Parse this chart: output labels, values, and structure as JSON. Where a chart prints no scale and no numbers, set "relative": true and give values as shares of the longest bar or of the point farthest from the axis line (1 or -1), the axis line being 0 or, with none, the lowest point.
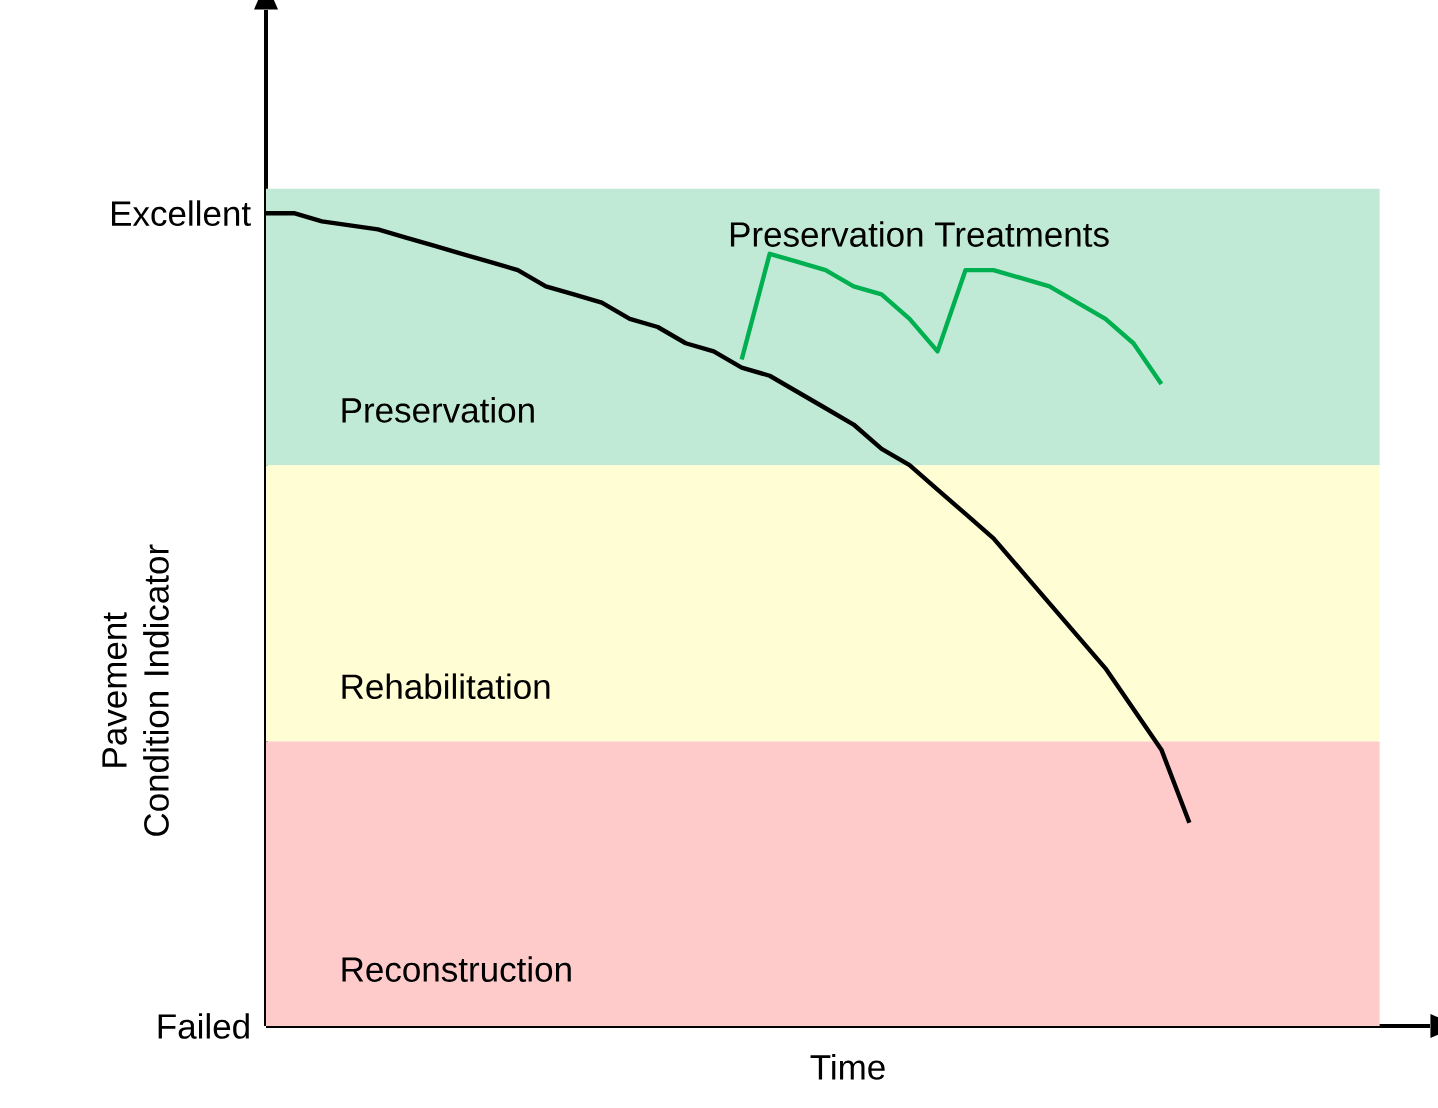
{
  "chart_data": {
    "type": "line",
    "xlabel": "Time",
    "ylabel": "Pavement Condition Indicator",
    "relative": true,
    "categories": [
      null,
      null,
      null,
      null,
      null,
      null,
      null,
      null,
      null,
      null,
      null,
      null,
      null,
      null,
      null,
      null,
      null,
      null,
      null,
      null,
      null,
      null,
      null,
      null,
      null,
      null,
      null,
      null,
      null,
      null,
      null,
      null,
      null,
      null,
      null,
      null,
      null,
      null,
      null,
      null
    ],
    "series": [
      {
        "color": "#000000",
        "values": [
          1.0,
          1.0,
          0.99,
          0.985,
          0.98,
          0.97,
          0.96,
          0.95,
          0.94,
          0.93,
          0.91,
          0.9,
          0.89,
          0.87,
          0.86,
          0.84,
          0.83,
          0.81,
          0.8,
          0.78,
          0.76,
          0.74,
          0.71,
          0.69,
          0.66,
          0.63,
          0.6,
          0.56,
          0.52,
          0.48,
          0.44,
          0.39,
          0.34,
          0.25,
          null,
          null,
          null,
          null,
          null,
          null
        ]
      },
      {
        "name": "Preservation Treatments",
        "color": "#00b050",
        "values": [
          null,
          null,
          null,
          null,
          null,
          null,
          null,
          null,
          null,
          null,
          null,
          null,
          null,
          null,
          null,
          null,
          null,
          0.82,
          0.95,
          0.94,
          0.93,
          0.91,
          0.9,
          0.87,
          0.83,
          0.93,
          0.93,
          0.92,
          0.91,
          0.89,
          0.87,
          0.84,
          0.79,
          null,
          null,
          null,
          null,
          null,
          null,
          null
        ]
      }
    ],
    "annotations": [
      "Excellent",
      "Failed"
    ],
    "bands": [
      {
        "axis": "y",
        "from": 0.69,
        "to": 1.03,
        "label": "Preservation",
        "color": "#c0ead5"
      },
      {
        "axis": "y",
        "from": 0.35,
        "to": 0.69,
        "label": "Rehabilitation",
        "color": "#fffdd3"
      },
      {
        "axis": "y",
        "from": 0,
        "to": 0.35,
        "label": "Reconstruction",
        "color": "#fecaca"
      }
    ]
  }
}
